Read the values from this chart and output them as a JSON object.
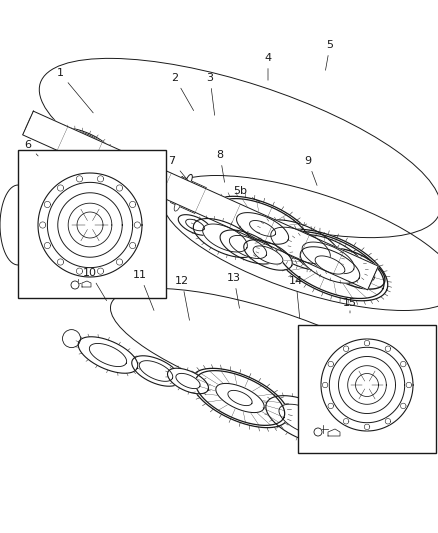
{
  "background_color": "#ffffff",
  "fig_width": 4.38,
  "fig_height": 5.33,
  "dpi": 100,
  "line_color": "#1a1a1a",
  "line_width": 0.8,
  "font_size": 8.0
}
